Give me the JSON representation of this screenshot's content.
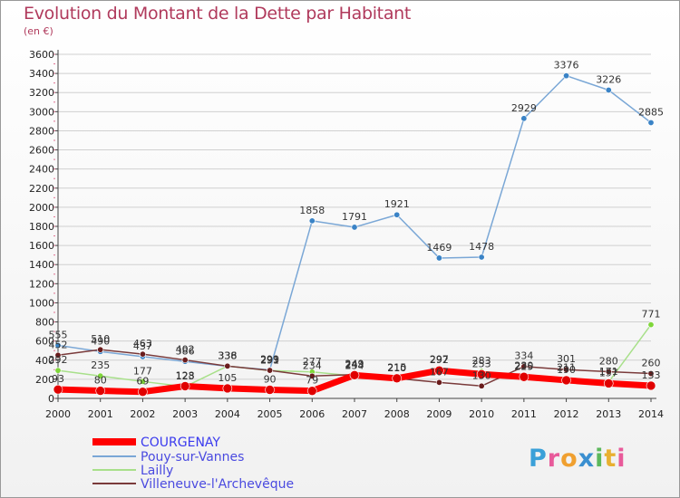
{
  "title": "Evolution du Montant de la Dette par Habitant",
  "unit": "(en €)",
  "chart_data": {
    "type": "line",
    "title": "Evolution du Montant de la Dette par Habitant",
    "ylabel": "(en €)",
    "xlabel": "",
    "x": [
      "2000",
      "2001",
      "2002",
      "2003",
      "2004",
      "2005",
      "2006",
      "2007",
      "2008",
      "2009",
      "2010",
      "2011",
      "2012",
      "2013",
      "2014"
    ],
    "ylim": [
      0,
      3600
    ],
    "yticks": [
      0,
      200,
      400,
      600,
      800,
      1000,
      1200,
      1400,
      1600,
      1800,
      2000,
      2200,
      2400,
      2600,
      2800,
      3000,
      3200,
      3400,
      3600
    ],
    "grid": "horizontal",
    "legend": "bottom-left",
    "series": [
      {
        "name": "COURGENAY",
        "color": "#ff0000",
        "dot": "#e00000",
        "width": 7,
        "values": [
          93,
          80,
          69,
          128,
          105,
          90,
          79,
          243,
          210,
          292,
          253,
          225,
          190,
          157,
          133
        ]
      },
      {
        "name": "Pouy-sur-Vannes",
        "color": "#7aa7d6",
        "dot": "#3a83c6",
        "width": 1.5,
        "values": [
          555,
          490,
          437,
          386,
          336,
          299,
          1858,
          1791,
          1921,
          1469,
          1478,
          2929,
          3376,
          3226,
          2885
        ]
      },
      {
        "name": "Lailly",
        "color": "#a8e08a",
        "dot": "#7fd63a",
        "width": 1.5,
        "values": [
          292,
          235,
          177,
          123,
          338,
          291,
          277,
          234,
          215,
          297,
          283,
          230,
          211,
          171,
          771
        ]
      },
      {
        "name": "Villeneuve-l'Archevêque",
        "color": "#7a3a3a",
        "dot": "#6a1c1c",
        "width": 1.5,
        "values": [
          452,
          510,
          463,
          402,
          338,
          293,
          234,
          249,
          210,
          167,
          130,
          334,
          301,
          280,
          260
        ]
      }
    ]
  }
}
